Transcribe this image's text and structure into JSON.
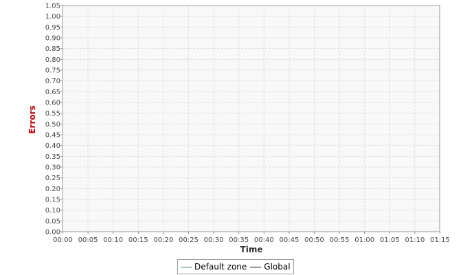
{
  "chart_data": {
    "type": "line",
    "xlabel": "Time",
    "ylabel": "Errors",
    "x_ticks": [
      "00:00",
      "00:05",
      "00:10",
      "00:15",
      "00:20",
      "00:25",
      "00:30",
      "00:35",
      "00:40",
      "00:45",
      "00:50",
      "00:55",
      "01:00",
      "01:05",
      "01:10",
      "01:15"
    ],
    "y_ticks": [
      "0.00",
      "0.05",
      "0.10",
      "0.15",
      "0.20",
      "0.25",
      "0.30",
      "0.35",
      "0.40",
      "0.45",
      "0.50",
      "0.55",
      "0.60",
      "0.65",
      "0.70",
      "0.75",
      "0.80",
      "0.85",
      "0.90",
      "0.95",
      "1.00",
      "1.05"
    ],
    "ylim": [
      0,
      1.05
    ],
    "xlim": [
      "00:00",
      "01:15"
    ],
    "grid": true,
    "legend_position": "bottom-center",
    "series": [
      {
        "name": "Default zone",
        "color": "#2e7d7a",
        "values": []
      },
      {
        "name": "Global",
        "color": "#000000",
        "values": []
      }
    ]
  },
  "colors": {
    "ylabel": "#c00000",
    "xlabel": "#333333",
    "plot_background": "#f8f8f8",
    "grid": "#dddddd"
  }
}
